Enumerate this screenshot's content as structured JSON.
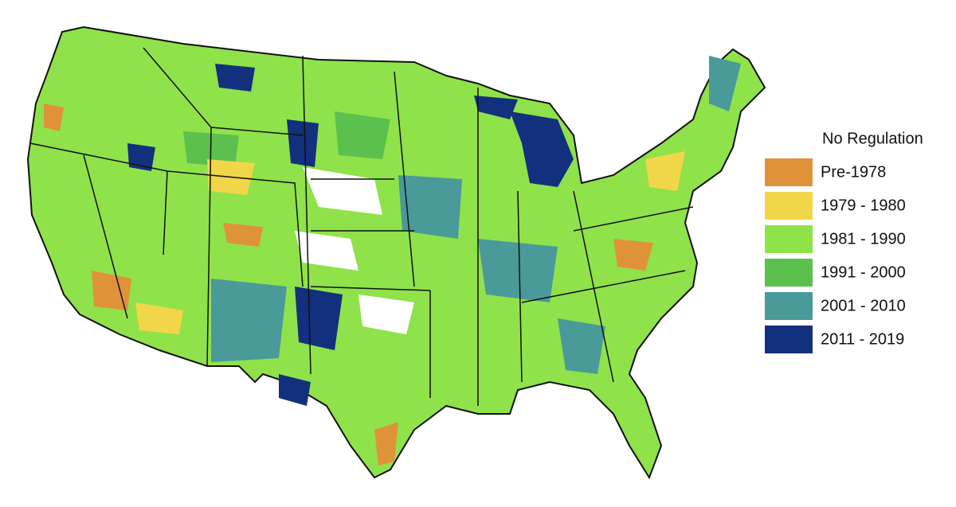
{
  "legend": {
    "title": "No Regulation",
    "items": [
      {
        "label": "Pre-1978",
        "color": "#e0923a"
      },
      {
        "label": "1979 - 1980",
        "color": "#f2d649"
      },
      {
        "label": "1981 - 1990",
        "color": "#8fe24a"
      },
      {
        "label": "1991 - 2000",
        "color": "#5cc04e"
      },
      {
        "label": "2001 - 2010",
        "color": "#4a9a9a"
      },
      {
        "label": "2011 - 2019",
        "color": "#13307d"
      }
    ]
  }
}
